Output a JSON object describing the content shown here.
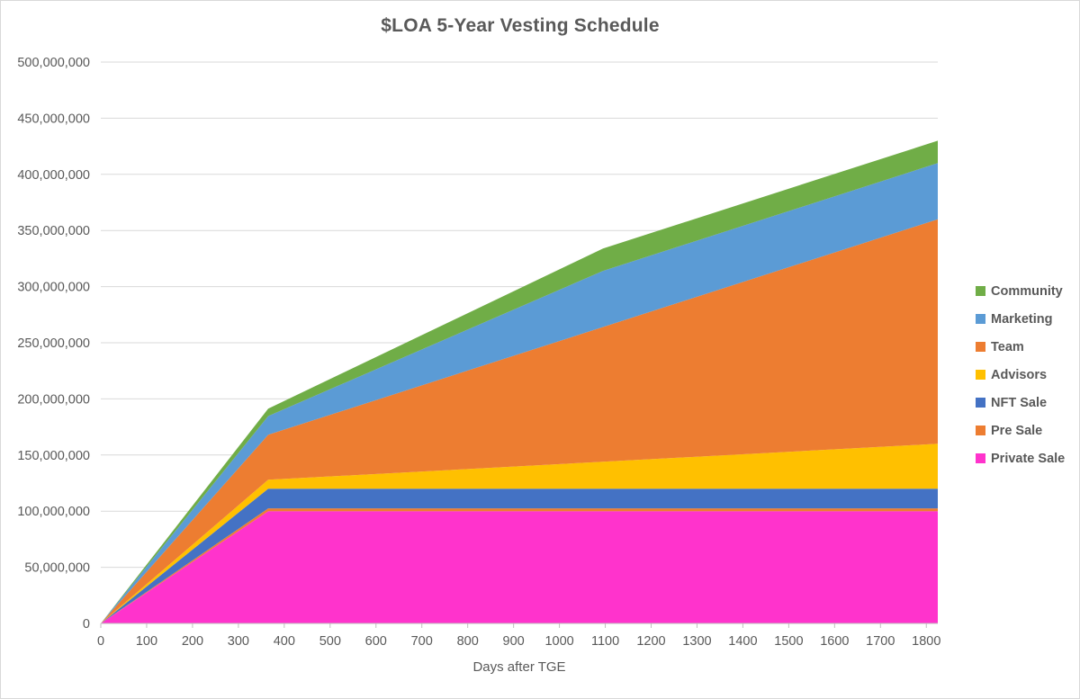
{
  "chart_data": {
    "type": "area",
    "stacked": true,
    "title": "$LOA 5-Year Vesting Schedule",
    "xlabel": "Days after TGE",
    "ylabel": "",
    "xlim": [
      0,
      1825
    ],
    "ylim": [
      0,
      500000000
    ],
    "grid": "horizontal",
    "x_ticks": [
      0,
      100,
      200,
      300,
      400,
      500,
      600,
      700,
      800,
      900,
      1000,
      1100,
      1200,
      1300,
      1400,
      1500,
      1600,
      1700,
      1800
    ],
    "y_ticks": [
      0,
      50000000,
      100000000,
      150000000,
      200000000,
      250000000,
      300000000,
      350000000,
      400000000,
      450000000,
      500000000
    ],
    "x": [
      0,
      365,
      1095,
      1825
    ],
    "series": [
      {
        "name": "Private Sale",
        "color": "#FF33CC",
        "values": [
          0,
          100000000,
          100000000,
          100000000
        ]
      },
      {
        "name": "Pre Sale",
        "color": "#ED7D31",
        "values": [
          0,
          2500000,
          2500000,
          2500000
        ]
      },
      {
        "name": "NFT Sale",
        "color": "#4472C4",
        "values": [
          0,
          17500000,
          17500000,
          17500000
        ]
      },
      {
        "name": "Advisors",
        "color": "#FFC000",
        "values": [
          0,
          8000000,
          24000000,
          40000000
        ]
      },
      {
        "name": "Team",
        "color": "#ED7D31",
        "values": [
          0,
          40000000,
          120000000,
          200000000
        ]
      },
      {
        "name": "Marketing",
        "color": "#5B9BD5",
        "values": [
          0,
          16666667,
          50000000,
          50000000
        ]
      },
      {
        "name": "Community",
        "color": "#70AD47",
        "values": [
          0,
          6666667,
          20000000,
          20000000
        ]
      }
    ],
    "legend": {
      "position": "right",
      "items": [
        {
          "label": "Community",
          "color": "#70AD47"
        },
        {
          "label": "Marketing",
          "color": "#5B9BD5"
        },
        {
          "label": "Team",
          "color": "#ED7D31"
        },
        {
          "label": "Advisors",
          "color": "#FFC000"
        },
        {
          "label": "NFT Sale",
          "color": "#4472C4"
        },
        {
          "label": "Pre Sale",
          "color": "#ED7D31"
        },
        {
          "label": "Private Sale",
          "color": "#FF33CC"
        }
      ]
    },
    "colors": {
      "title_text": "#595959",
      "axis_text": "#595959",
      "gridline": "#D9D9D9",
      "axis_line": "#BFBFBF",
      "background": "#FFFFFF"
    }
  }
}
